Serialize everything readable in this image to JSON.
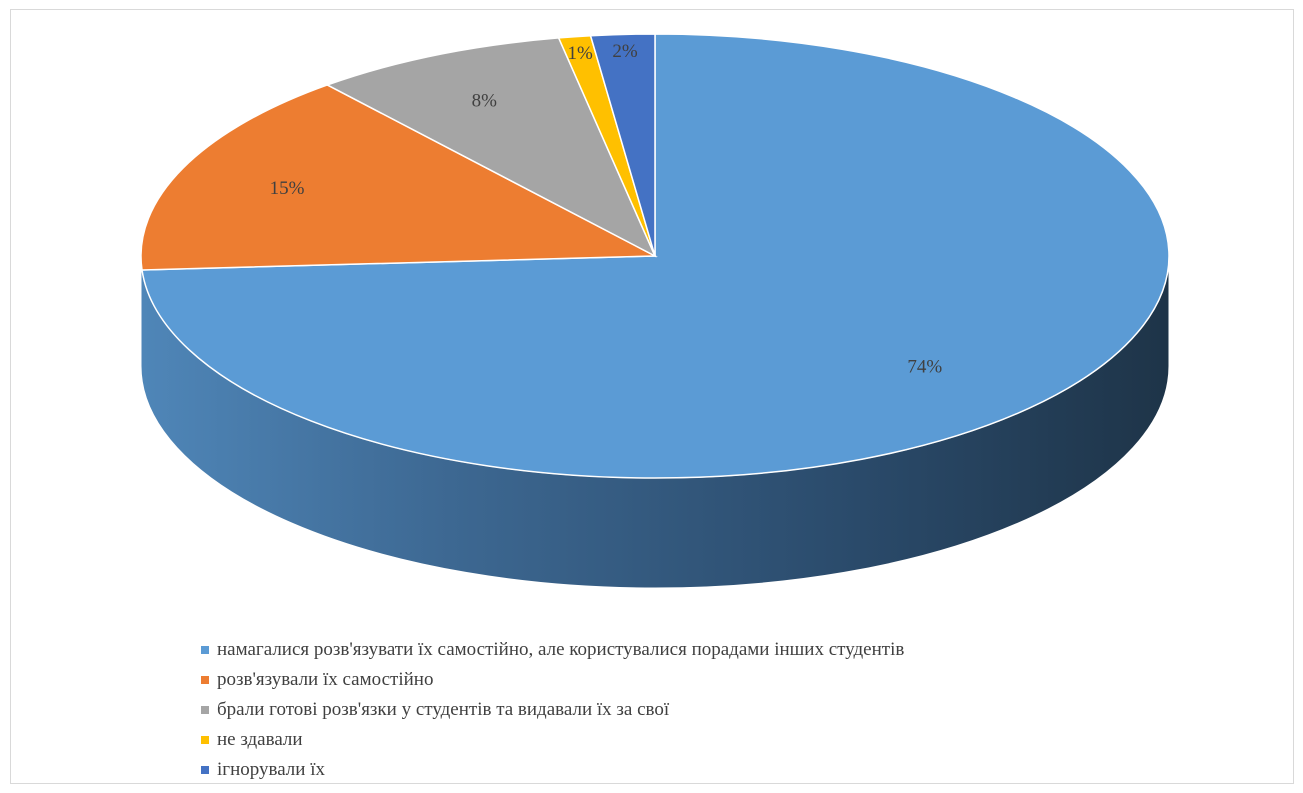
{
  "chart_data": {
    "type": "pie",
    "title": "",
    "categories": [
      "намагалися розв'язувати їх самостійно, але користувалися порадами інших студентів",
      "розв'язували їх самостійно",
      "брали готові розв'язки у студентів та видавали їх за свої",
      "не здавали",
      "ігнорували їх"
    ],
    "values": [
      74,
      15,
      8,
      1,
      2
    ],
    "data_labels": [
      "74%",
      "15%",
      "8%",
      "1%",
      "2%"
    ],
    "colors": [
      "#5B9BD5",
      "#ED7D31",
      "#A5A5A5",
      "#FFC000",
      "#4472C4"
    ],
    "legend_position": "bottom",
    "style": "3d-pie"
  }
}
